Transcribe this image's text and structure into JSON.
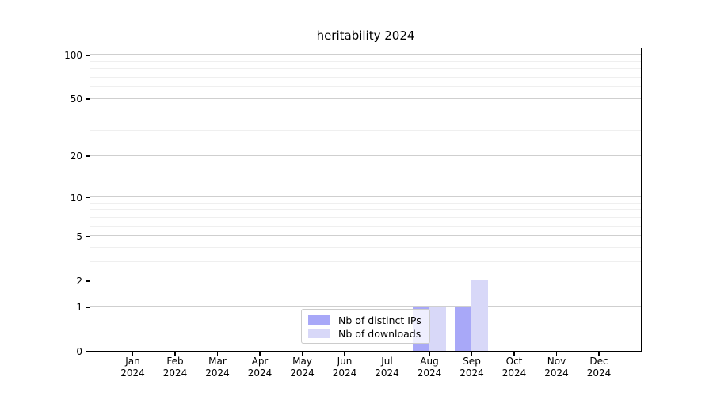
{
  "chart_data": {
    "type": "bar",
    "title": "heritability 2024",
    "categories": [
      {
        "month": "Jan",
        "year": "2024"
      },
      {
        "month": "Feb",
        "year": "2024"
      },
      {
        "month": "Mar",
        "year": "2024"
      },
      {
        "month": "Apr",
        "year": "2024"
      },
      {
        "month": "May",
        "year": "2024"
      },
      {
        "month": "Jun",
        "year": "2024"
      },
      {
        "month": "Jul",
        "year": "2024"
      },
      {
        "month": "Aug",
        "year": "2024"
      },
      {
        "month": "Sep",
        "year": "2024"
      },
      {
        "month": "Oct",
        "year": "2024"
      },
      {
        "month": "Nov",
        "year": "2024"
      },
      {
        "month": "Dec",
        "year": "2024"
      }
    ],
    "series": [
      {
        "name": "Nb of distinct IPs",
        "color": "#a8a8f8",
        "values": [
          0,
          0,
          0,
          0,
          0,
          0,
          0,
          1,
          1,
          0,
          0,
          0
        ]
      },
      {
        "name": "Nb of downloads",
        "color": "#d8d8f8",
        "values": [
          0,
          0,
          0,
          0,
          0,
          0,
          0,
          1,
          2,
          0,
          0,
          0
        ]
      }
    ],
    "yscale": "log1p",
    "ylim": [
      0,
      113
    ],
    "y_ticks": [
      {
        "value": 100,
        "label": "100"
      },
      {
        "value": 50,
        "label": "50"
      },
      {
        "value": 20,
        "label": "20"
      },
      {
        "value": 10,
        "label": "10"
      },
      {
        "value": 5,
        "label": "5"
      },
      {
        "value": 2,
        "label": "2"
      },
      {
        "value": 1,
        "label": "1"
      },
      {
        "value": 0,
        "label": "0"
      }
    ],
    "major_grid_values": [
      1,
      2,
      5,
      10,
      20,
      50,
      100
    ],
    "minor_grid_values": [
      3,
      4,
      6,
      7,
      8,
      9,
      30,
      40,
      60,
      70,
      80,
      90
    ],
    "grid": "horizontal",
    "legend_position": "lower center",
    "colors": {
      "major_grid": "#cfcfcf",
      "minor_grid": "#efefef",
      "axis": "#000000",
      "background": "#ffffff"
    }
  }
}
